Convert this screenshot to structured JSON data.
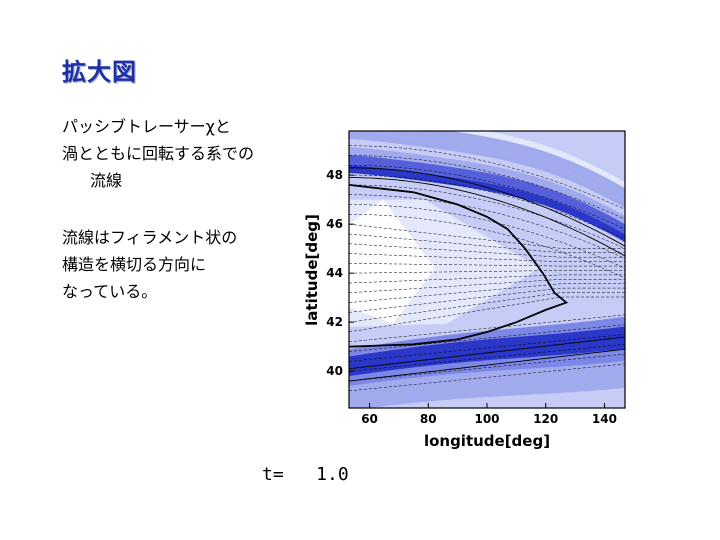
{
  "slide": {
    "title": "拡大図",
    "paragraphs": [
      [
        "パッシブトレーサーχと",
        "渦とともに回転する系での",
        "流線"
      ],
      [
        "流線はフィラメント状の",
        "構造を横切る方向に",
        "なっている。"
      ]
    ],
    "time_label": "t=   1.0"
  },
  "chart_data": {
    "type": "contour",
    "title": "",
    "xlabel": "longitude[deg]",
    "ylabel": "latitude[deg]",
    "xlim": [
      53,
      147
    ],
    "ylim": [
      38.5,
      49.8
    ],
    "xticks": [
      60,
      80,
      100,
      120,
      140
    ],
    "yticks": [
      40,
      42,
      44,
      46,
      48
    ],
    "fill_colors": [
      "#ffffff",
      "#e4e8fb",
      "#c6ccf5",
      "#a2aaee",
      "#7d87e5",
      "#5560da",
      "#2a37c9"
    ],
    "highlighted_streamline": [
      [
        53,
        47.6
      ],
      [
        75,
        47.3
      ],
      [
        90,
        46.8
      ],
      [
        100,
        46.3
      ],
      [
        107,
        45.8
      ],
      [
        113,
        45.0
      ],
      [
        119,
        44.0
      ],
      [
        123,
        43.2
      ],
      [
        127,
        42.8
      ],
      [
        120,
        42.5
      ],
      [
        110,
        42.0
      ],
      [
        100,
        41.6
      ],
      [
        90,
        41.3
      ],
      [
        75,
        41.1
      ],
      [
        53,
        41.0
      ]
    ],
    "contour_color": "#000000"
  }
}
